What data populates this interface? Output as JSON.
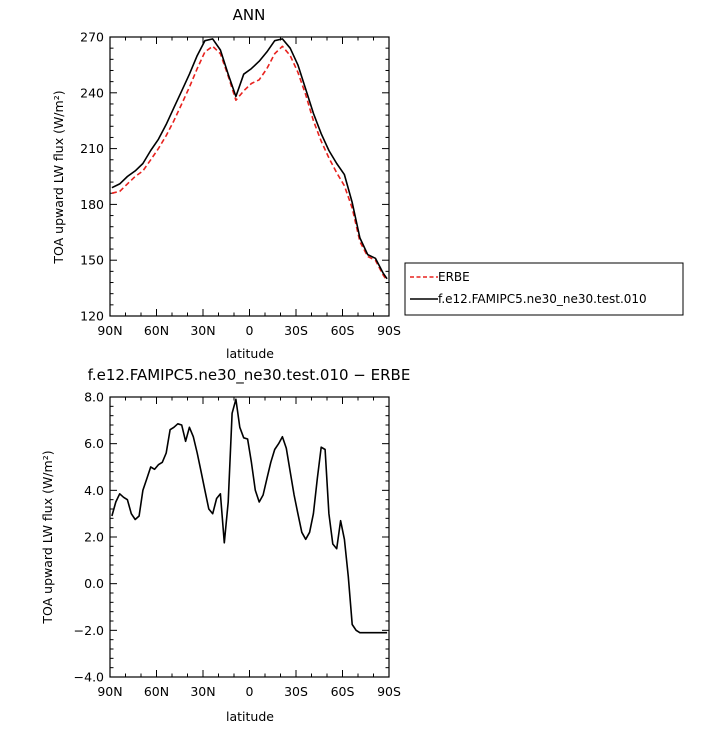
{
  "chart_data": [
    {
      "type": "line",
      "title": "ANN",
      "xlabel": "latitude",
      "ylabel": "TOA upward LW flux (W/m²)",
      "xlim": [
        90,
        -90
      ],
      "ylim": [
        120,
        270
      ],
      "x_tick_values": [
        90,
        60,
        30,
        0,
        -30,
        -60,
        -90
      ],
      "x_tick_labels": [
        "90N",
        "60N",
        "30N",
        "0",
        "30S",
        "60S",
        "90S"
      ],
      "y_ticks": [
        "120",
        "150",
        "180",
        "210",
        "240",
        "270"
      ],
      "y_tick_values": [
        120,
        150,
        180,
        210,
        240,
        270
      ],
      "grid": false,
      "legend_position": "outside-right",
      "series": [
        {
          "name": "ERBE",
          "color": "#e8221e",
          "dash": "dashed",
          "x": [
            88.75,
            83.75,
            78.75,
            73.75,
            68.75,
            63.75,
            58.75,
            53.75,
            48.75,
            43.75,
            38.75,
            33.75,
            28.75,
            23.75,
            18.75,
            13.75,
            8.75,
            3.75,
            -1.25,
            -6.25,
            -11.25,
            -16.25,
            -21.25,
            -26.25,
            -31.25,
            -36.25,
            -41.25,
            -46.25,
            -51.25,
            -56.25,
            -61.25,
            -66.25,
            -71.25,
            -76.25,
            -81.25,
            -86.25,
            -88.75
          ],
          "y": [
            186,
            187,
            191,
            195,
            198,
            204,
            210,
            217,
            225,
            234,
            243,
            253,
            262,
            265,
            261,
            249,
            236,
            241,
            245,
            247,
            253,
            261,
            265,
            260,
            251,
            239,
            225,
            214,
            205,
            197,
            190,
            178,
            160,
            152,
            150,
            142,
            139
          ]
        },
        {
          "name": "f.e12.FAMIPC5.ne30_ne30.test.010",
          "color": "#000000",
          "dash": "solid",
          "x": [
            88.75,
            83.75,
            78.75,
            73.75,
            68.75,
            63.75,
            58.75,
            53.75,
            48.75,
            43.75,
            38.75,
            33.75,
            28.75,
            23.75,
            18.75,
            13.75,
            8.75,
            3.75,
            -1.25,
            -6.25,
            -11.25,
            -16.25,
            -21.25,
            -26.25,
            -31.25,
            -36.25,
            -41.25,
            -46.25,
            -51.25,
            -56.25,
            -61.25,
            -66.25,
            -71.25,
            -76.25,
            -81.25,
            -86.25,
            -88.75
          ],
          "y": [
            189,
            191,
            195,
            198,
            202,
            209,
            215,
            223,
            232,
            241,
            250,
            260,
            268,
            269,
            263,
            250,
            238,
            250,
            253,
            257,
            262,
            268,
            269,
            264,
            255,
            242,
            229,
            218,
            209,
            202,
            196,
            181,
            162,
            153,
            151,
            143,
            140
          ]
        }
      ]
    },
    {
      "type": "line",
      "title": "f.e12.FAMIPC5.ne30_ne30.test.010 − ERBE",
      "xlabel": "latitude",
      "ylabel": "TOA upward LW flux (W/m²)",
      "xlim": [
        90,
        -90
      ],
      "ylim": [
        -4,
        8
      ],
      "x_tick_values": [
        90,
        60,
        30,
        0,
        -30,
        -60,
        -90
      ],
      "x_tick_labels": [
        "90N",
        "60N",
        "30N",
        "0",
        "30S",
        "60S",
        "90S"
      ],
      "y_ticks": [
        "−4.0",
        "−2.0",
        "0.0",
        "2.0",
        "4.0",
        "6.0",
        "8.0"
      ],
      "y_tick_values": [
        -4,
        -2,
        0,
        2,
        4,
        6,
        8
      ],
      "grid": false,
      "series": [
        {
          "color": "#000000",
          "dash": "solid",
          "x": [
            88.75,
            86.25,
            83.75,
            81.25,
            78.75,
            76.25,
            73.75,
            71.25,
            68.75,
            66.25,
            63.75,
            61.25,
            58.75,
            56.25,
            53.75,
            51.25,
            48.75,
            46.25,
            43.75,
            41.25,
            38.75,
            36.25,
            33.75,
            31.25,
            28.75,
            26.25,
            23.75,
            21.25,
            18.75,
            16.25,
            13.75,
            11.25,
            8.75,
            6.25,
            3.75,
            1.25,
            -1.25,
            -3.75,
            -6.25,
            -8.75,
            -11.25,
            -13.75,
            -16.25,
            -18.75,
            -21.25,
            -23.75,
            -26.25,
            -28.75,
            -31.25,
            -33.75,
            -36.25,
            -38.75,
            -41.25,
            -43.75,
            -46.25,
            -48.75,
            -51.25,
            -53.75,
            -56.25,
            -58.75,
            -61.25,
            -63.75,
            -66.25,
            -68.75,
            -71.25,
            -73.75,
            -76.25,
            -78.75,
            -81.25,
            -83.75,
            -86.25,
            -88.75
          ],
          "y": [
            2.9,
            3.5,
            3.85,
            3.7,
            3.6,
            3.0,
            2.75,
            2.9,
            4.0,
            4.5,
            5.0,
            4.9,
            5.1,
            5.2,
            5.6,
            6.6,
            6.7,
            6.85,
            6.8,
            6.1,
            6.7,
            6.3,
            5.6,
            4.8,
            4.0,
            3.2,
            3.0,
            3.65,
            3.85,
            1.75,
            3.5,
            7.3,
            7.9,
            6.7,
            6.25,
            6.2,
            5.2,
            4.0,
            3.5,
            3.8,
            4.5,
            5.2,
            5.75,
            6.0,
            6.3,
            5.8,
            4.8,
            3.8,
            3.0,
            2.2,
            1.9,
            2.2,
            3.0,
            4.5,
            5.85,
            5.75,
            3.0,
            1.7,
            1.5,
            2.7,
            1.9,
            0.3,
            -1.75,
            -2.0,
            -2.1,
            -2.1,
            -2.1,
            -2.1,
            -2.1,
            -2.1,
            -2.1,
            -2.1
          ]
        }
      ]
    }
  ]
}
